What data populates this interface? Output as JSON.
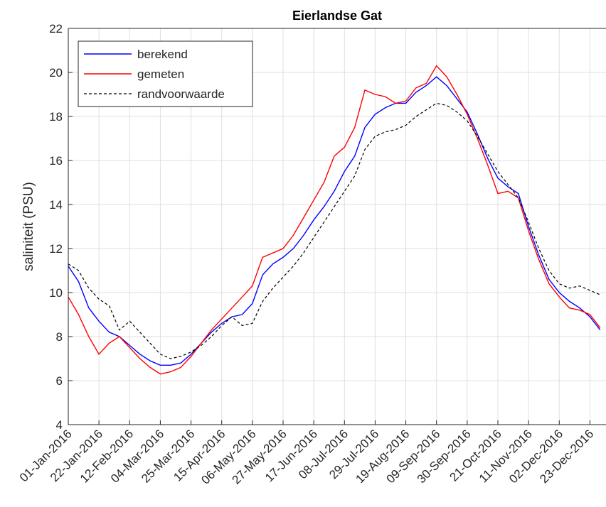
{
  "chart_data": {
    "type": "line",
    "title": "Eierlandse Gat",
    "y_label": "saliniteit (PSU)",
    "x": [
      "2016-01-01",
      "2016-01-08",
      "2016-01-15",
      "2016-01-22",
      "2016-01-29",
      "2016-02-05",
      "2016-02-12",
      "2016-02-19",
      "2016-02-26",
      "2016-03-04",
      "2016-03-11",
      "2016-03-18",
      "2016-03-25",
      "2016-04-01",
      "2016-04-08",
      "2016-04-15",
      "2016-04-22",
      "2016-04-29",
      "2016-05-06",
      "2016-05-13",
      "2016-05-20",
      "2016-05-27",
      "2016-06-03",
      "2016-06-10",
      "2016-06-17",
      "2016-06-24",
      "2016-07-01",
      "2016-07-08",
      "2016-07-15",
      "2016-07-22",
      "2016-07-29",
      "2016-08-05",
      "2016-08-12",
      "2016-08-19",
      "2016-08-26",
      "2016-09-02",
      "2016-09-09",
      "2016-09-16",
      "2016-09-23",
      "2016-09-30",
      "2016-10-07",
      "2016-10-14",
      "2016-10-21",
      "2016-10-28",
      "2016-11-04",
      "2016-11-11",
      "2016-11-18",
      "2016-11-25",
      "2016-12-02",
      "2016-12-09",
      "2016-12-16",
      "2016-12-23",
      "2016-12-30"
    ],
    "series": [
      {
        "name": "berekend",
        "color": "#0000ff",
        "dash": "solid",
        "values": [
          11.2,
          10.5,
          9.3,
          8.7,
          8.2,
          8.0,
          7.6,
          7.2,
          6.9,
          6.7,
          6.7,
          6.8,
          7.2,
          7.7,
          8.2,
          8.6,
          8.9,
          9.0,
          9.5,
          10.8,
          11.3,
          11.6,
          12.0,
          12.6,
          13.3,
          13.9,
          14.6,
          15.5,
          16.2,
          17.5,
          18.1,
          18.4,
          18.6,
          18.6,
          19.1,
          19.4,
          19.8,
          19.4,
          18.8,
          18.2,
          17.2,
          16.1,
          15.2,
          14.8,
          14.5,
          13.0,
          11.7,
          10.6,
          10.0,
          9.6,
          9.3,
          8.9,
          8.3
        ]
      },
      {
        "name": "gemeten",
        "color": "#ff0000",
        "dash": "solid",
        "values": [
          9.8,
          9.0,
          8.0,
          7.2,
          7.7,
          8.0,
          7.5,
          7.0,
          6.6,
          6.3,
          6.4,
          6.6,
          7.1,
          7.7,
          8.3,
          8.8,
          9.3,
          9.8,
          10.3,
          11.6,
          11.8,
          12.0,
          12.6,
          13.4,
          14.2,
          15.0,
          16.2,
          16.6,
          17.5,
          19.2,
          19.0,
          18.9,
          18.6,
          18.7,
          19.3,
          19.5,
          20.3,
          19.8,
          19.0,
          18.1,
          17.0,
          15.8,
          14.5,
          14.6,
          14.3,
          12.8,
          11.5,
          10.4,
          9.8,
          9.3,
          9.2,
          9.0,
          8.4
        ]
      },
      {
        "name": "randvoorwaarde",
        "color": "#000000",
        "dash": "dashed",
        "values": [
          11.3,
          11.0,
          10.2,
          9.7,
          9.4,
          8.3,
          8.7,
          8.2,
          7.7,
          7.2,
          7.0,
          7.1,
          7.3,
          7.6,
          8.0,
          8.5,
          8.9,
          8.5,
          8.6,
          9.6,
          10.2,
          10.7,
          11.2,
          11.8,
          12.5,
          13.2,
          13.9,
          14.6,
          15.3,
          16.5,
          17.1,
          17.3,
          17.4,
          17.6,
          18.0,
          18.3,
          18.6,
          18.5,
          18.2,
          17.8,
          17.1,
          16.3,
          15.5,
          14.9,
          14.3,
          13.2,
          12.0,
          11.0,
          10.4,
          10.2,
          10.3,
          10.1,
          9.9
        ]
      }
    ],
    "xlim": [
      "2016-01-01",
      "2017-01-03"
    ],
    "xticks": [
      {
        "value": "2016-01-01",
        "label": "01-Jan-2016"
      },
      {
        "value": "2016-01-22",
        "label": "22-Jan-2016"
      },
      {
        "value": "2016-02-12",
        "label": "12-Feb-2016"
      },
      {
        "value": "2016-03-04",
        "label": "04-Mar-2016"
      },
      {
        "value": "2016-03-25",
        "label": "25-Mar-2016"
      },
      {
        "value": "2016-04-15",
        "label": "15-Apr-2016"
      },
      {
        "value": "2016-05-06",
        "label": "06-May-2016"
      },
      {
        "value": "2016-05-27",
        "label": "27-May-2016"
      },
      {
        "value": "2016-06-17",
        "label": "17-Jun-2016"
      },
      {
        "value": "2016-07-08",
        "label": "08-Jul-2016"
      },
      {
        "value": "2016-07-29",
        "label": "29-Jul-2016"
      },
      {
        "value": "2016-08-19",
        "label": "19-Aug-2016"
      },
      {
        "value": "2016-09-09",
        "label": "09-Sep-2016"
      },
      {
        "value": "2016-09-30",
        "label": "30-Sep-2016"
      },
      {
        "value": "2016-10-21",
        "label": "21-Oct-2016"
      },
      {
        "value": "2016-11-11",
        "label": "11-Nov-2016"
      },
      {
        "value": "2016-12-02",
        "label": "02-Dec-2016"
      },
      {
        "value": "2016-12-23",
        "label": "23-Dec-2016"
      }
    ],
    "ylim": [
      4,
      22
    ],
    "yticks": [
      4,
      6,
      8,
      10,
      12,
      14,
      16,
      18,
      20,
      22
    ],
    "grid": true,
    "legend": "upper left"
  }
}
